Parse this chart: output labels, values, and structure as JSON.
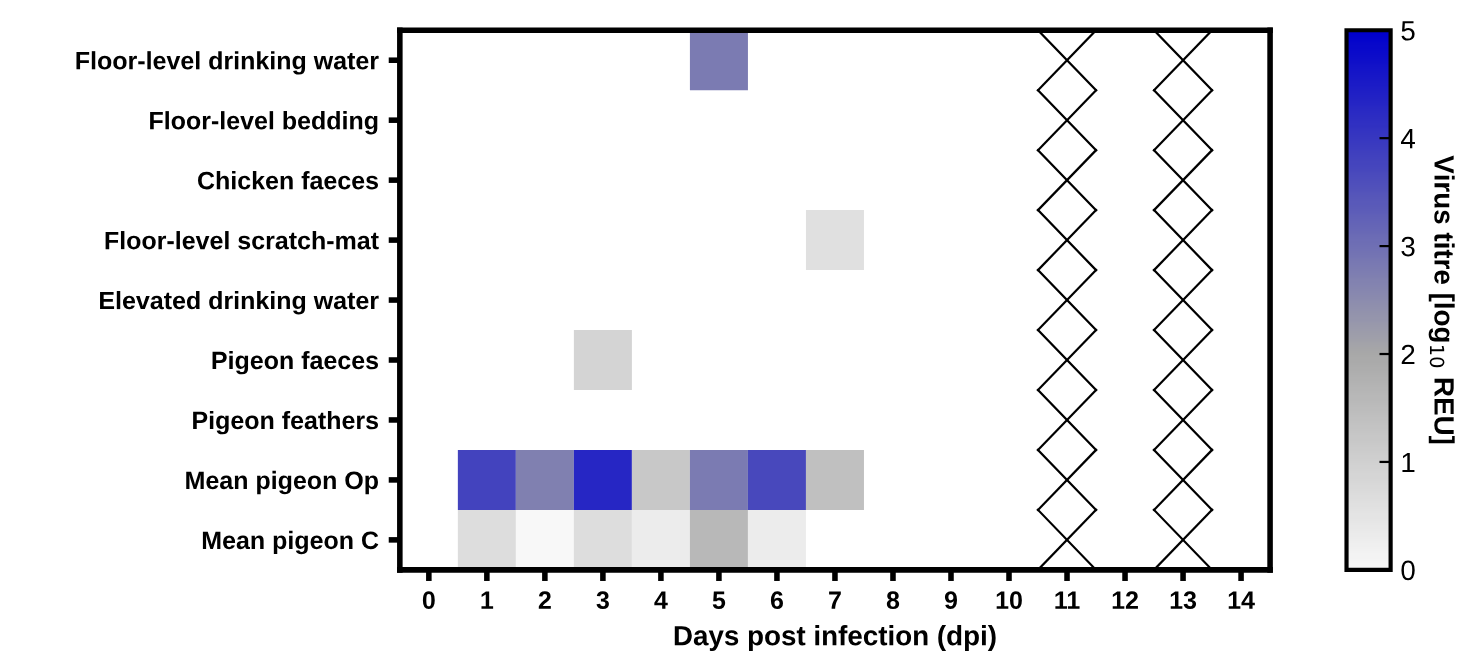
{
  "chart_data": {
    "type": "heatmap",
    "xlabel": "Days post infection (dpi)",
    "clabel": "Virus titre [log$_{10}$ REU]",
    "categories": [
      "0",
      "1",
      "2",
      "3",
      "4",
      "5",
      "6",
      "7",
      "8",
      "9",
      "10",
      "11",
      "12",
      "13",
      "14"
    ],
    "y_categories": [
      "Floor-level drinking water",
      "Floor-level bedding",
      "Chicken faeces",
      "Floor-level scratch-mat",
      "Elevated drinking water",
      "Pigeon faeces",
      "Pigeon feathers",
      "Mean pigeon Op",
      "Mean pigeon C"
    ],
    "cells": [
      [
        null,
        null,
        null,
        null,
        null,
        2.8,
        null,
        null,
        null,
        null,
        null,
        null,
        null,
        null,
        null
      ],
      [
        null,
        null,
        null,
        null,
        null,
        null,
        null,
        null,
        null,
        null,
        null,
        null,
        null,
        null,
        null
      ],
      [
        null,
        null,
        null,
        null,
        null,
        null,
        null,
        null,
        null,
        null,
        null,
        null,
        null,
        null,
        null
      ],
      [
        null,
        null,
        null,
        null,
        null,
        null,
        null,
        0.6,
        null,
        null,
        null,
        null,
        null,
        null,
        null
      ],
      [
        null,
        null,
        null,
        null,
        null,
        null,
        null,
        null,
        null,
        null,
        null,
        null,
        null,
        null,
        null
      ],
      [
        null,
        null,
        null,
        0.9,
        null,
        null,
        null,
        null,
        null,
        null,
        null,
        null,
        null,
        null,
        null
      ],
      [
        null,
        null,
        null,
        null,
        null,
        null,
        null,
        null,
        null,
        null,
        null,
        null,
        null,
        null,
        null
      ],
      [
        null,
        3.8,
        2.7,
        4.3,
        1.2,
        2.8,
        3.7,
        1.4,
        null,
        null,
        null,
        null,
        null,
        null,
        null
      ],
      [
        null,
        0.7,
        0,
        0.7,
        0.3,
        1.6,
        0.3,
        null,
        null,
        null,
        null,
        null,
        null,
        null,
        null
      ]
    ],
    "clim": [
      0,
      5
    ],
    "cticks": [
      0,
      1,
      2,
      3,
      4,
      5
    ]
  }
}
